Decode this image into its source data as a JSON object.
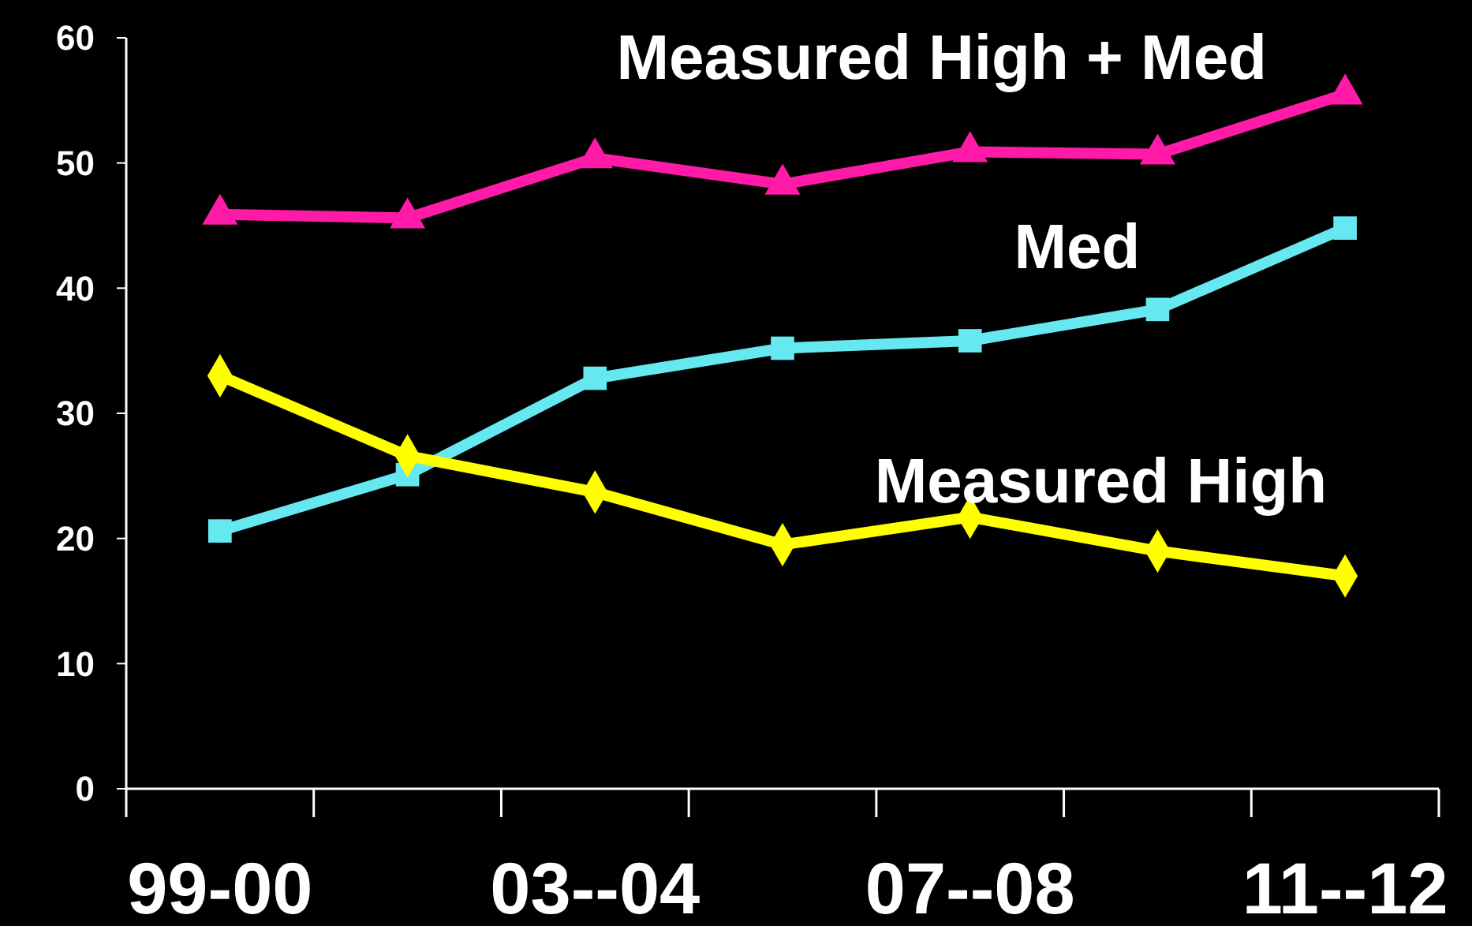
{
  "chart_data": {
    "type": "line",
    "categories": [
      "99-00",
      null,
      "03--04",
      null,
      "07--08",
      null,
      "11--12"
    ],
    "ylim": [
      0,
      60
    ],
    "yticks": [
      0,
      10,
      20,
      30,
      40,
      50,
      60
    ],
    "grid": false,
    "series": [
      {
        "name": "Measured High + Med",
        "color": "#ff1aa8",
        "marker": "triangle",
        "values": [
          45.9,
          45.6,
          50.4,
          48.3,
          50.9,
          50.7,
          55.5
        ]
      },
      {
        "name": "Med",
        "color": "#66e8f0",
        "marker": "square",
        "values": [
          20.6,
          25.1,
          32.8,
          35.2,
          35.8,
          38.3,
          44.8
        ]
      },
      {
        "name": "Measured High",
        "color": "#ffff00",
        "marker": "diamond",
        "values": [
          33.0,
          26.6,
          23.7,
          19.5,
          21.7,
          19.0,
          17.0
        ]
      }
    ]
  }
}
